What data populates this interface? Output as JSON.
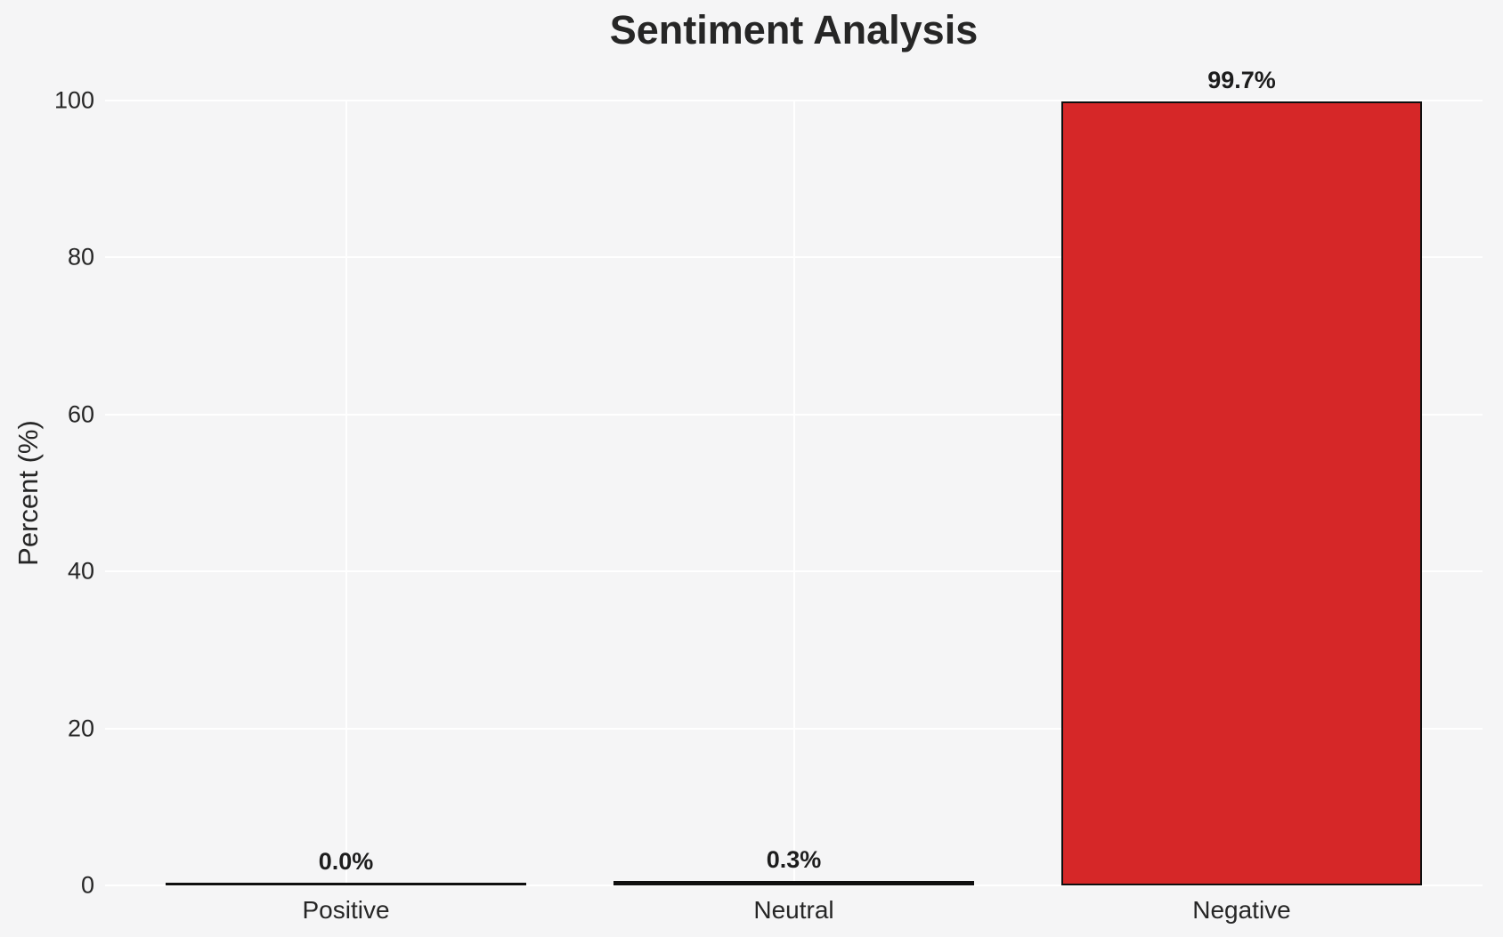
{
  "chart_data": {
    "type": "bar",
    "title": "Sentiment Analysis",
    "ylabel": "Percent (%)",
    "xlabel": "",
    "categories": [
      "Positive",
      "Neutral",
      "Negative"
    ],
    "values": [
      0.0,
      0.3,
      99.7
    ],
    "value_labels": [
      "0.0%",
      "0.3%",
      "99.7%"
    ],
    "bar_colors": [
      "#111111",
      "#111111",
      "#d62728"
    ],
    "bar_edge_color": "#0f0f0f",
    "ylim": [
      0,
      100
    ],
    "yticks": [
      0,
      20,
      40,
      60,
      80,
      100
    ],
    "grid": true,
    "grid_color": "#ffffff",
    "background_color": "#f5f5f6",
    "text_color": "#262626",
    "legend_position": "none"
  }
}
